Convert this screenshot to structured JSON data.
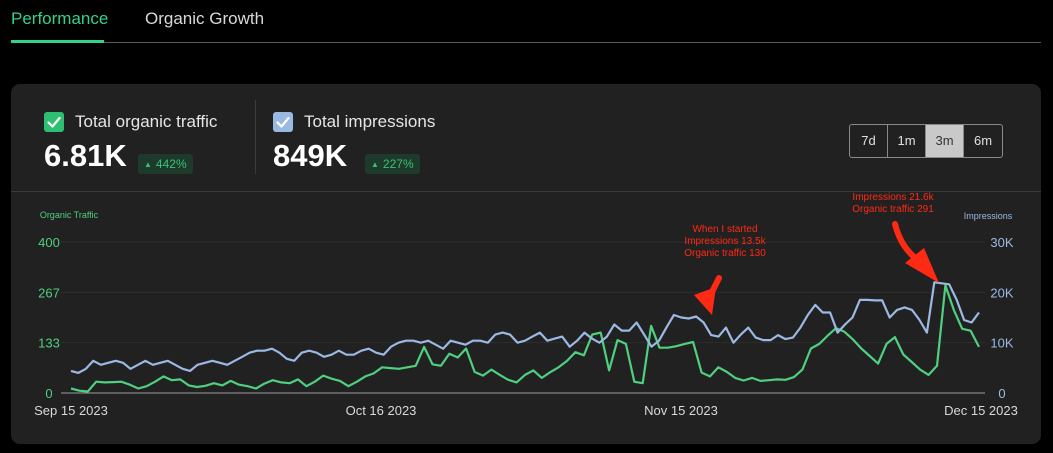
{
  "tabs": [
    {
      "label": "Performance",
      "active": true
    },
    {
      "label": "Organic Growth",
      "active": false
    }
  ],
  "metrics": {
    "traffic": {
      "label": "Total organic traffic",
      "value": "6.81K",
      "change": "442%",
      "color": "#2fbf73"
    },
    "impressions": {
      "label": "Total impressions",
      "value": "849K",
      "change": "227%",
      "color": "#9ab9e2"
    }
  },
  "range_buttons": [
    "7d",
    "1m",
    "3m",
    "6m"
  ],
  "range_selected": "3m",
  "colors": {
    "traffic_line": "#4fcf80",
    "impressions_line": "#9cb9e4",
    "annotation": "#ff2a14",
    "grid": "#2e2e2e",
    "axis_baseline": "#9a9a9a"
  },
  "chart_data": {
    "type": "line",
    "left_axis_label": "Organic Traffic",
    "right_axis_label": "Impressions",
    "left_ticks": [
      "400",
      "267",
      "133",
      "0"
    ],
    "right_ticks": [
      "30K",
      "20K",
      "10K",
      "0"
    ],
    "left_range": [
      0,
      400
    ],
    "right_range": [
      0,
      30000
    ],
    "x_labels": [
      "Sep 15 2023",
      "Oct 16 2023",
      "Nov 15 2023",
      "Dec 15 2023"
    ],
    "x_start": "Sep 15 2023",
    "x_end": "Dec 15 2023",
    "grid": true,
    "series": [
      {
        "name": "Organic Traffic",
        "axis": "left",
        "values": [
          12,
          6,
          4,
          30,
          28,
          29,
          30,
          22,
          12,
          18,
          30,
          44,
          34,
          36,
          20,
          16,
          19,
          26,
          20,
          32,
          22,
          18,
          12,
          25,
          34,
          28,
          26,
          36,
          18,
          30,
          46,
          38,
          32,
          18,
          30,
          44,
          52,
          68,
          66,
          64,
          68,
          72,
          122,
          76,
          72,
          104,
          94,
          118,
          56,
          46,
          62,
          48,
          35,
          28,
          48,
          60,
          40,
          55,
          68,
          85,
          108,
          100,
          155,
          160,
          60,
          140,
          130,
          30,
          26,
          178,
          120,
          120,
          124,
          130,
          135,
          54,
          44,
          68,
          56,
          40,
          33,
          40,
          32,
          34,
          36,
          35,
          42,
          62,
          118,
          130,
          152,
          172,
          162,
          142,
          118,
          98,
          78,
          130,
          148,
          102,
          82,
          62,
          48,
          72,
          285,
          220,
          170,
          165,
          122
        ]
      },
      {
        "name": "Impressions",
        "axis": "right",
        "values": [
          4400,
          4000,
          4800,
          6400,
          5600,
          6000,
          6400,
          6000,
          4800,
          5600,
          6400,
          5600,
          6000,
          6400,
          5600,
          4800,
          4400,
          5600,
          6000,
          6400,
          6000,
          5600,
          6400,
          7200,
          8000,
          8400,
          8400,
          8800,
          8000,
          6800,
          6400,
          8000,
          8400,
          8000,
          7200,
          7600,
          8400,
          7600,
          7600,
          8400,
          8800,
          8000,
          7600,
          9200,
          10000,
          10400,
          10400,
          10000,
          10400,
          9600,
          8800,
          10400,
          10000,
          9600,
          10400,
          10400,
          10000,
          11600,
          12000,
          11600,
          10000,
          10400,
          11200,
          12000,
          10400,
          10800,
          11200,
          9200,
          10400,
          12000,
          10800,
          10000,
          11200,
          13600,
          12400,
          12400,
          14000,
          11600,
          9200,
          10400,
          13000,
          15500,
          15000,
          14800,
          15200,
          14000,
          11500,
          11200,
          13000,
          10000,
          11600,
          13000,
          11000,
          10500,
          10500,
          11500,
          10700,
          11000,
          13000,
          15500,
          17500,
          16000,
          16000,
          12000,
          13600,
          15000,
          18500,
          18500,
          18400,
          18400,
          15000,
          16500,
          17000,
          16500,
          14500,
          12000,
          22000,
          21800,
          21600,
          18500,
          14500,
          14000,
          16000
        ]
      }
    ],
    "annotations": [
      {
        "lines": [
          "When I started",
          "Impressions 13.5k",
          "Organic traffic 130"
        ]
      },
      {
        "lines": [
          "Impressions 21.6k",
          "Organic traffic 291"
        ]
      }
    ]
  }
}
